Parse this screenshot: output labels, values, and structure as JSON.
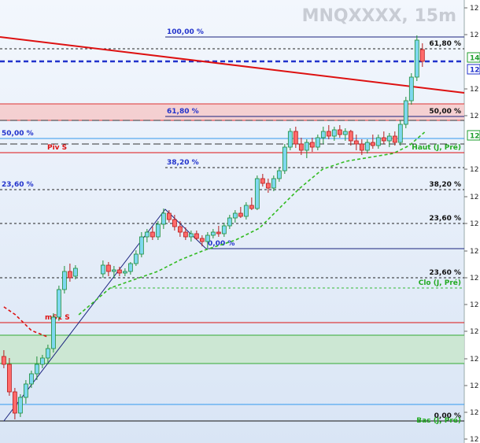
{
  "chart_data": {
    "type": "candlestick",
    "title": "MNQXXXX, 15m",
    "xlim": [
      -0.7,
      83.6
    ],
    "ylim": [
      0,
      563
    ],
    "yticks": [
      {
        "value": 553,
        "label": "12"
      },
      {
        "value": 519,
        "label": "12"
      },
      {
        "value": 450,
        "label": "12"
      },
      {
        "value": 416,
        "label": "12"
      },
      {
        "value": 348,
        "label": "12"
      },
      {
        "value": 313,
        "label": "12"
      },
      {
        "value": 279,
        "label": "12"
      },
      {
        "value": 244,
        "label": "12"
      },
      {
        "value": 210,
        "label": "12"
      },
      {
        "value": 176,
        "label": "12"
      },
      {
        "value": 142,
        "label": "12"
      },
      {
        "value": 107,
        "label": "12"
      },
      {
        "value": 73,
        "label": "12"
      },
      {
        "value": 39,
        "label": "12"
      },
      {
        "value": 5,
        "label": "12"
      }
    ],
    "price_markers": [
      {
        "value": 490,
        "label": "14",
        "color": "#1e9e2e"
      },
      {
        "value": 475,
        "label": "12",
        "color": "#2233cc"
      },
      {
        "value": 391,
        "label": "12",
        "color": "#1e9e2e"
      }
    ],
    "up_color": "#7fd8f0",
    "down_color": "#ff6b6b",
    "open": [
      110,
      100,
      65,
      38,
      58,
      75,
      88,
      100,
      108,
      120,
      160,
      195,
      218,
      212,
      null,
      null,
      null,
      null,
      215,
      226,
      218,
      220,
      216,
      218,
      228,
      240,
      262,
      268,
      262,
      278,
      292,
      284,
      275,
      268,
      262,
      266,
      260,
      256,
      264,
      268,
      266,
      276,
      286,
      292,
      288,
      302,
      298,
      336,
      330,
      324,
      336,
      346,
      376,
      396,
      380,
      372,
      382,
      376,
      388,
      396,
      390,
      398,
      392,
      396,
      384,
      380,
      372,
      382,
      378,
      388,
      384,
      390,
      382,
      405,
      435,
      465,
      500
    ],
    "high": [
      118,
      108,
      70,
      62,
      80,
      92,
      110,
      112,
      125,
      165,
      200,
      225,
      228,
      226,
      null,
      null,
      null,
      null,
      232,
      230,
      225,
      224,
      222,
      230,
      245,
      268,
      272,
      275,
      282,
      298,
      296,
      290,
      282,
      274,
      270,
      270,
      264,
      268,
      272,
      276,
      280,
      290,
      296,
      300,
      306,
      312,
      340,
      342,
      336,
      340,
      350,
      380,
      400,
      402,
      388,
      386,
      388,
      392,
      402,
      404,
      402,
      404,
      400,
      398,
      392,
      386,
      386,
      392,
      392,
      396,
      394,
      396,
      410,
      440,
      470,
      518,
      508
    ],
    "low": [
      95,
      60,
      30,
      33,
      50,
      70,
      80,
      95,
      100,
      115,
      155,
      190,
      205,
      208,
      null,
      null,
      null,
      null,
      210,
      212,
      210,
      212,
      212,
      214,
      225,
      236,
      255,
      258,
      258,
      272,
      280,
      270,
      262,
      258,
      256,
      258,
      250,
      248,
      260,
      262,
      262,
      272,
      280,
      286,
      284,
      296,
      296,
      326,
      318,
      320,
      332,
      342,
      372,
      375,
      366,
      362,
      370,
      372,
      380,
      386,
      384,
      388,
      384,
      378,
      372,
      366,
      368,
      374,
      374,
      380,
      376,
      378,
      378,
      400,
      430,
      460,
      478
    ],
    "close": [
      100,
      65,
      38,
      58,
      75,
      88,
      100,
      108,
      120,
      160,
      195,
      218,
      210,
      222,
      null,
      null,
      null,
      null,
      226,
      218,
      220,
      216,
      218,
      228,
      240,
      262,
      268,
      262,
      278,
      292,
      284,
      275,
      268,
      262,
      266,
      260,
      256,
      264,
      268,
      266,
      276,
      286,
      292,
      288,
      302,
      298,
      336,
      330,
      324,
      336,
      346,
      376,
      396,
      380,
      372,
      382,
      376,
      388,
      396,
      390,
      398,
      392,
      396,
      384,
      380,
      372,
      382,
      378,
      388,
      384,
      390,
      382,
      405,
      435,
      465,
      512,
      485
    ],
    "overlays": [
      {
        "color": "#dd1111",
        "style": "solid",
        "width": 2,
        "x": [
          -0.7,
          83.6
        ],
        "values": [
          516,
          445
        ]
      },
      {
        "color": "#1a237e",
        "style": "solid",
        "width": 1,
        "x": [
          0,
          29.3,
          36.7
        ],
        "values": [
          28,
          297,
          247
        ]
      },
      {
        "color": "#33bb22",
        "style": "dashed",
        "width": 1.6,
        "x": [
          13.6,
          19.3,
          27.9,
          32.1,
          36.4,
          42.1,
          46.4,
          50.7,
          53.6,
          57.9,
          62.1,
          66.4,
          70.7,
          73.6,
          76.4
        ],
        "values": [
          163,
          197,
          218,
          233,
          245,
          258,
          273,
          303,
          323,
          348,
          358,
          363,
          368,
          378,
          395
        ]
      },
      {
        "color": "#dd1111",
        "style": "dashed",
        "width": 1.6,
        "x": [
          0,
          2.1,
          5,
          7.9
        ],
        "values": [
          173,
          163,
          143,
          135
        ]
      }
    ],
    "bands": [
      {
        "from": 410,
        "to": 431,
        "color": "#f6c9c9",
        "border": "#dd3333"
      },
      {
        "from": 101,
        "to": 137,
        "color": "#c9e6cc",
        "border": "#33aa33"
      }
    ],
    "levels": [
      {
        "value": 516,
        "color": "#1a237e",
        "style": "solid",
        "labels": [
          {
            "text": "100,00 %",
            "align": "left",
            "color": "#2233cc"
          }
        ]
      },
      {
        "value": 501,
        "color": "#222222",
        "style": "dashed",
        "labels": [
          {
            "text": "61,80 %",
            "align": "right",
            "color": "#111111"
          }
        ]
      },
      {
        "value": 485,
        "color": "#2233cc",
        "style": "thick",
        "labels": []
      },
      {
        "value": 415,
        "color": "#1a237e",
        "style": "solid",
        "labels": [
          {
            "text": "61,80 %",
            "align": "left",
            "color": "#2233cc"
          },
          {
            "text": "50,00 %",
            "align": "right",
            "color": "#111111"
          }
        ]
      },
      {
        "value": 410,
        "color": "#333333",
        "style": "long",
        "labels": []
      },
      {
        "value": 387,
        "color": "#3399ee",
        "style": "solid",
        "labels": [
          {
            "text": "50,00 %",
            "align": "left",
            "color": "#2233cc"
          }
        ]
      },
      {
        "value": 380,
        "color": "#333333",
        "style": "long",
        "labels": []
      },
      {
        "value": 369,
        "color": "#dd1111",
        "style": "solid",
        "labels": [
          {
            "text": "Piv S",
            "align": "left",
            "color": "#dd1111"
          },
          {
            "text": "Haut (J, Pré)",
            "align": "right",
            "color": "#22aa22"
          }
        ]
      },
      {
        "value": 350,
        "color": "#222222",
        "style": "dashed",
        "labels": [
          {
            "text": "38,20 %",
            "align": "left",
            "color": "#2233cc"
          }
        ]
      },
      {
        "value": 322,
        "color": "#222222",
        "style": "dashed",
        "labels": [
          {
            "text": "23,60 %",
            "align": "left",
            "color": "#2233cc"
          },
          {
            "text": "38,20 %",
            "align": "right",
            "color": "#111111"
          }
        ]
      },
      {
        "value": 279,
        "color": "#222222",
        "style": "dashed",
        "labels": [
          {
            "text": "23,60 %",
            "align": "right",
            "color": "#111111"
          }
        ]
      },
      {
        "value": 247,
        "color": "#1a237e",
        "style": "solid",
        "labels": [
          {
            "text": "0,00 %",
            "align": "left",
            "color": "#2233cc"
          }
        ]
      },
      {
        "value": 210,
        "color": "#222222",
        "style": "dashed",
        "labels": [
          {
            "text": "23,60 %",
            "align": "right",
            "color": "#111111"
          }
        ]
      },
      {
        "value": 197,
        "color": "#33bb33",
        "style": "dashed",
        "labels": [
          {
            "text": "Clo (J, Pré)",
            "align": "right",
            "color": "#22aa22"
          }
        ]
      },
      {
        "value": 153,
        "color": "#dd1111",
        "style": "solid",
        "labels": [
          {
            "text": "mS1 S",
            "align": "left",
            "color": "#dd1111"
          }
        ]
      },
      {
        "value": 49,
        "color": "#3399ee",
        "style": "solid",
        "labels": []
      },
      {
        "value": 28,
        "color": "#111111",
        "style": "solid",
        "labels": [
          {
            "text": "0,00 %",
            "align": "right",
            "color": "#111111"
          },
          {
            "text": "Bas (J, Pré)",
            "align": "right",
            "color": "#22aa22"
          }
        ]
      }
    ]
  }
}
